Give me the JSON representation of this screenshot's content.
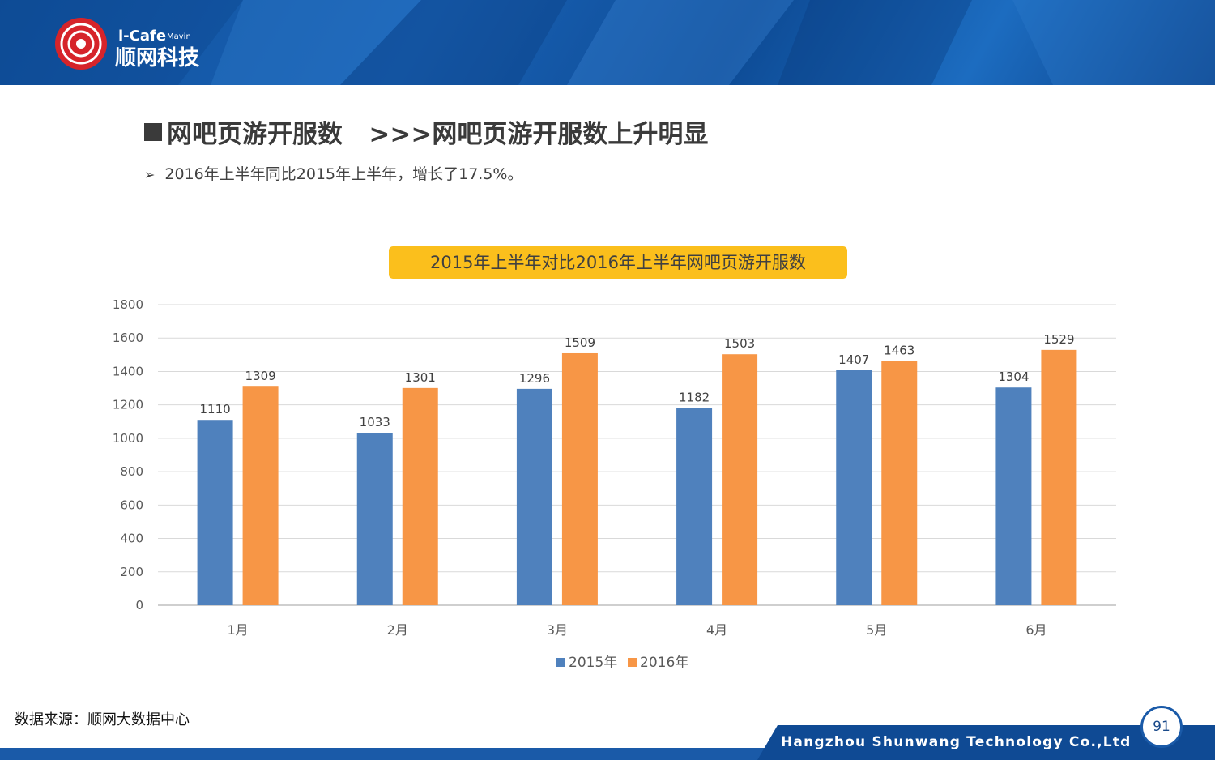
{
  "brand": {
    "logo_latin": "i-Cafe",
    "logo_small": "Mavin",
    "logo_cn": "顺网科技"
  },
  "slide": {
    "title": "网吧页游开服数",
    "title_sub": ">>>网吧页游开服数上升明显",
    "bullet": "2016年上半年同比2015年上半年，增长了17.5%。",
    "source": "数据来源：顺网大数据中心",
    "company": "Hangzhou Shunwang Technology Co.,Ltd",
    "page": "91"
  },
  "colors": {
    "series_2015": "#4f81bd",
    "series_2016": "#f79646",
    "title_bg": "#fbbf1c",
    "header_blue": "#1a5aa8"
  },
  "chart_data": {
    "type": "bar",
    "title": "2015年上半年对比2016年上半年网吧页游开服数",
    "categories": [
      "1月",
      "2月",
      "3月",
      "4月",
      "5月",
      "6月"
    ],
    "series": [
      {
        "name": "2015年",
        "values": [
          1110,
          1033,
          1296,
          1182,
          1407,
          1304
        ]
      },
      {
        "name": "2016年",
        "values": [
          1309,
          1301,
          1509,
          1503,
          1463,
          1529
        ]
      }
    ],
    "ylim": [
      0,
      1800
    ],
    "yticks": [
      0,
      200,
      400,
      600,
      800,
      1000,
      1200,
      1400,
      1600,
      1800
    ],
    "grid": true,
    "legend": "bottom",
    "xlabel": "",
    "ylabel": ""
  }
}
